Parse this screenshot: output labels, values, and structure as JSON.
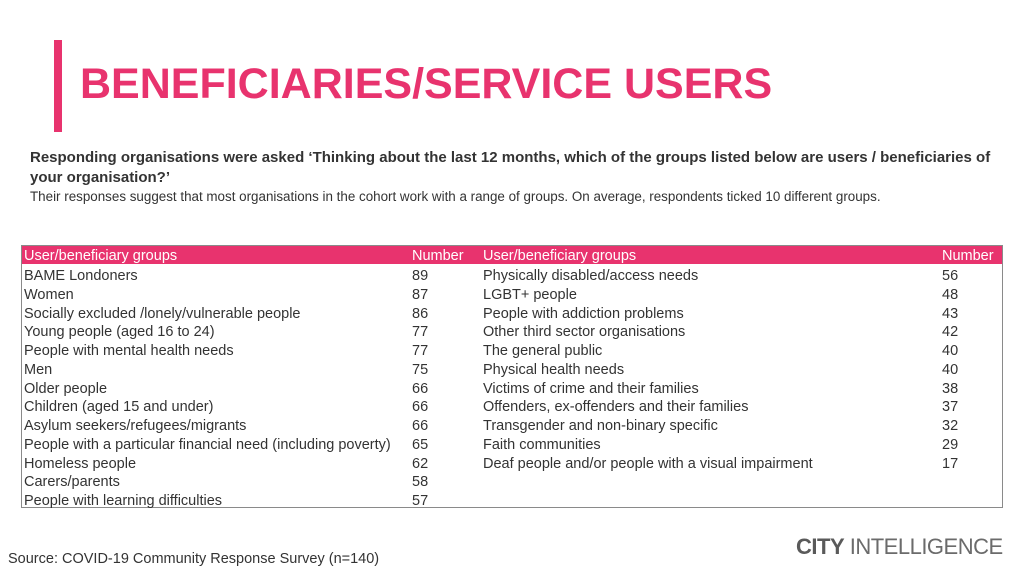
{
  "page": {
    "title": "BENEFICIARIES/SERVICE USERS",
    "question": "Responding organisations were asked ‘Thinking about the last 12 months, which of the groups listed below are users / beneficiaries of your organisation?’",
    "summary": "Their responses suggest that most organisations in the cohort work with a range of groups. On average, respondents ticked 10 different groups.",
    "source": "Source: COVID-19 Community Response Survey (n=140)"
  },
  "logo": {
    "strong": "CITY",
    "light": " INTELLIGENCE"
  },
  "colors": {
    "accent": "#e8336e",
    "text": "#333333",
    "logo": "#6b6b6b"
  },
  "table": {
    "headers": {
      "group_left": "User/beneficiary groups",
      "number_left": "Number",
      "group_right": "User/beneficiary groups",
      "number_right": "Number"
    },
    "left": [
      {
        "label": "BAME Londoners",
        "number": "89"
      },
      {
        "label": "Women",
        "number": "87"
      },
      {
        "label": "Socially excluded /lonely/vulnerable people",
        "number": "86"
      },
      {
        "label": "Young people (aged 16 to 24)",
        "number": "77"
      },
      {
        "label": "People with mental health needs",
        "number": "77"
      },
      {
        "label": "Men",
        "number": "75"
      },
      {
        "label": "Older people",
        "number": "66"
      },
      {
        "label": "Children (aged 15 and under)",
        "number": "66"
      },
      {
        "label": "Asylum seekers/refugees/migrants",
        "number": "66"
      },
      {
        "label": "People with a particular financial need (including poverty)",
        "number": "65"
      },
      {
        "label": "Homeless people",
        "number": "62"
      },
      {
        "label": "Carers/parents",
        "number": "58"
      },
      {
        "label": "People with learning difficulties",
        "number": "57"
      }
    ],
    "right": [
      {
        "label": "Physically disabled/access needs",
        "number": "56"
      },
      {
        "label": "LGBT+ people",
        "number": "48"
      },
      {
        "label": "People with addiction problems",
        "number": "43"
      },
      {
        "label": "Other third sector organisations",
        "number": "42"
      },
      {
        "label": "The general public",
        "number": "40"
      },
      {
        "label": "Physical health needs",
        "number": "40"
      },
      {
        "label": "Victims of crime and their families",
        "number": "38"
      },
      {
        "label": "Offenders, ex-offenders and their families",
        "number": "37"
      },
      {
        "label": "Transgender and non-binary specific",
        "number": "32"
      },
      {
        "label": "Faith communities",
        "number": "29"
      },
      {
        "label": "Deaf people and/or people with a visual impairment",
        "number": "17"
      }
    ]
  }
}
